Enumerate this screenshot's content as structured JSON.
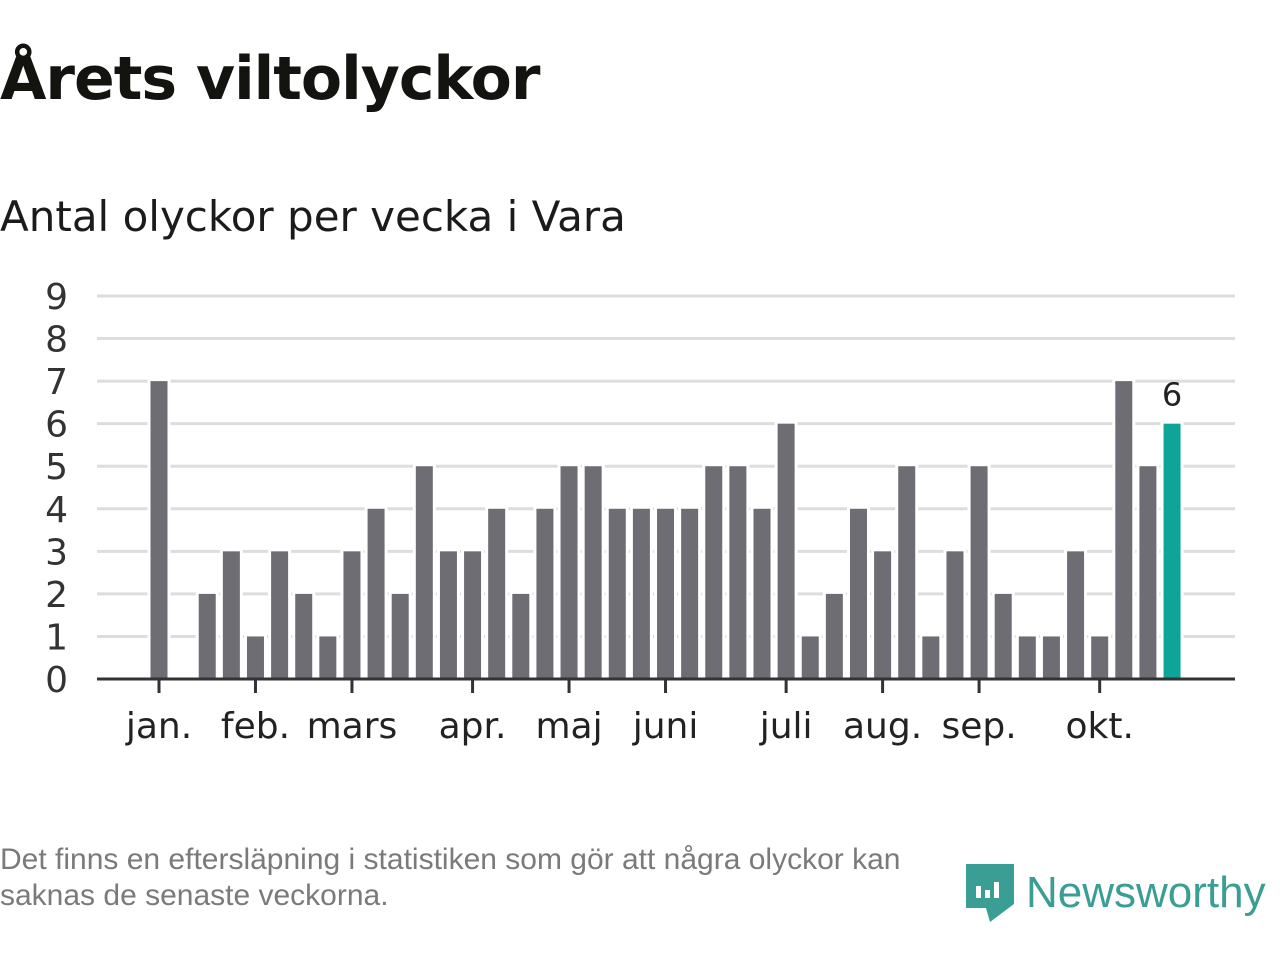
{
  "title": "Årets viltolyckor",
  "subtitle": "Antal olyckor per vecka i Vara",
  "note": "Det finns en eftersläpning i statistiken som gör att några olyckor kan saknas de senaste veckorna.",
  "logo": "Newsworthy",
  "colors": {
    "bar": "#6e6d73",
    "highlight": "#0ea498",
    "grid": "#dddddd",
    "axis": "#333333"
  },
  "chart_data": {
    "type": "bar",
    "title": "Antal olyckor per vecka i Vara",
    "xlabel": "",
    "ylabel": "",
    "ylim": [
      0,
      9
    ],
    "yticks": [
      0,
      1,
      2,
      3,
      4,
      5,
      6,
      7,
      8,
      9
    ],
    "values": [
      7,
      0,
      2,
      3,
      1,
      3,
      2,
      1,
      3,
      4,
      2,
      5,
      3,
      3,
      4,
      2,
      4,
      5,
      5,
      4,
      4,
      4,
      4,
      5,
      5,
      4,
      6,
      1,
      2,
      4,
      3,
      5,
      1,
      3,
      5,
      2,
      1,
      1,
      3,
      1,
      7,
      5,
      6
    ],
    "highlight_last": true,
    "last_label": "6",
    "month_ticks": [
      {
        "label": "jan.",
        "week_index": 0
      },
      {
        "label": "feb.",
        "week_index": 4
      },
      {
        "label": "mars",
        "week_index": 8
      },
      {
        "label": "apr.",
        "week_index": 13
      },
      {
        "label": "maj",
        "week_index": 17
      },
      {
        "label": "juni",
        "week_index": 21
      },
      {
        "label": "juli",
        "week_index": 26
      },
      {
        "label": "aug.",
        "week_index": 30
      },
      {
        "label": "sep.",
        "week_index": 34
      },
      {
        "label": "okt.",
        "week_index": 39
      }
    ],
    "grid": true
  }
}
